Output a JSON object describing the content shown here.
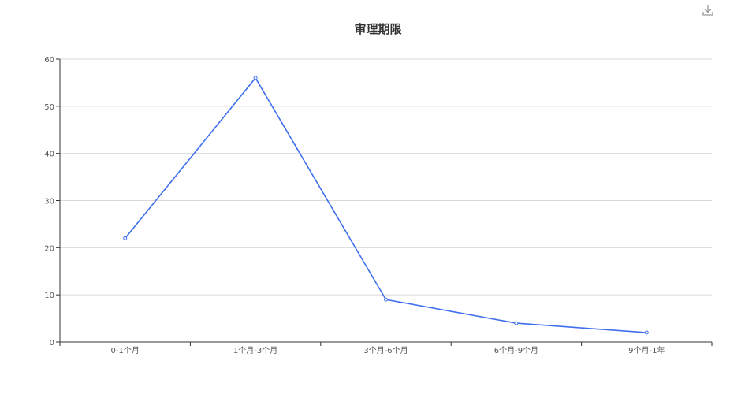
{
  "toolbar": {
    "download_icon": "download-icon"
  },
  "chart_data": {
    "type": "line",
    "title": "审理期限",
    "xlabel": "",
    "ylabel": "",
    "categories": [
      "0-1个月",
      "1个月-3个月",
      "3个月-6个月",
      "6个月-9个月",
      "9个月-1年"
    ],
    "series": [
      {
        "values": [
          22,
          56,
          9,
          4,
          2
        ]
      }
    ],
    "ylim": [
      0,
      60
    ],
    "yticks": [
      0,
      10,
      20,
      30,
      40,
      50,
      60
    ],
    "grid": true,
    "legend": "none",
    "colors": {
      "line": "#3f6fee",
      "grid": "#d9d9d9",
      "axis": "#333333"
    }
  }
}
